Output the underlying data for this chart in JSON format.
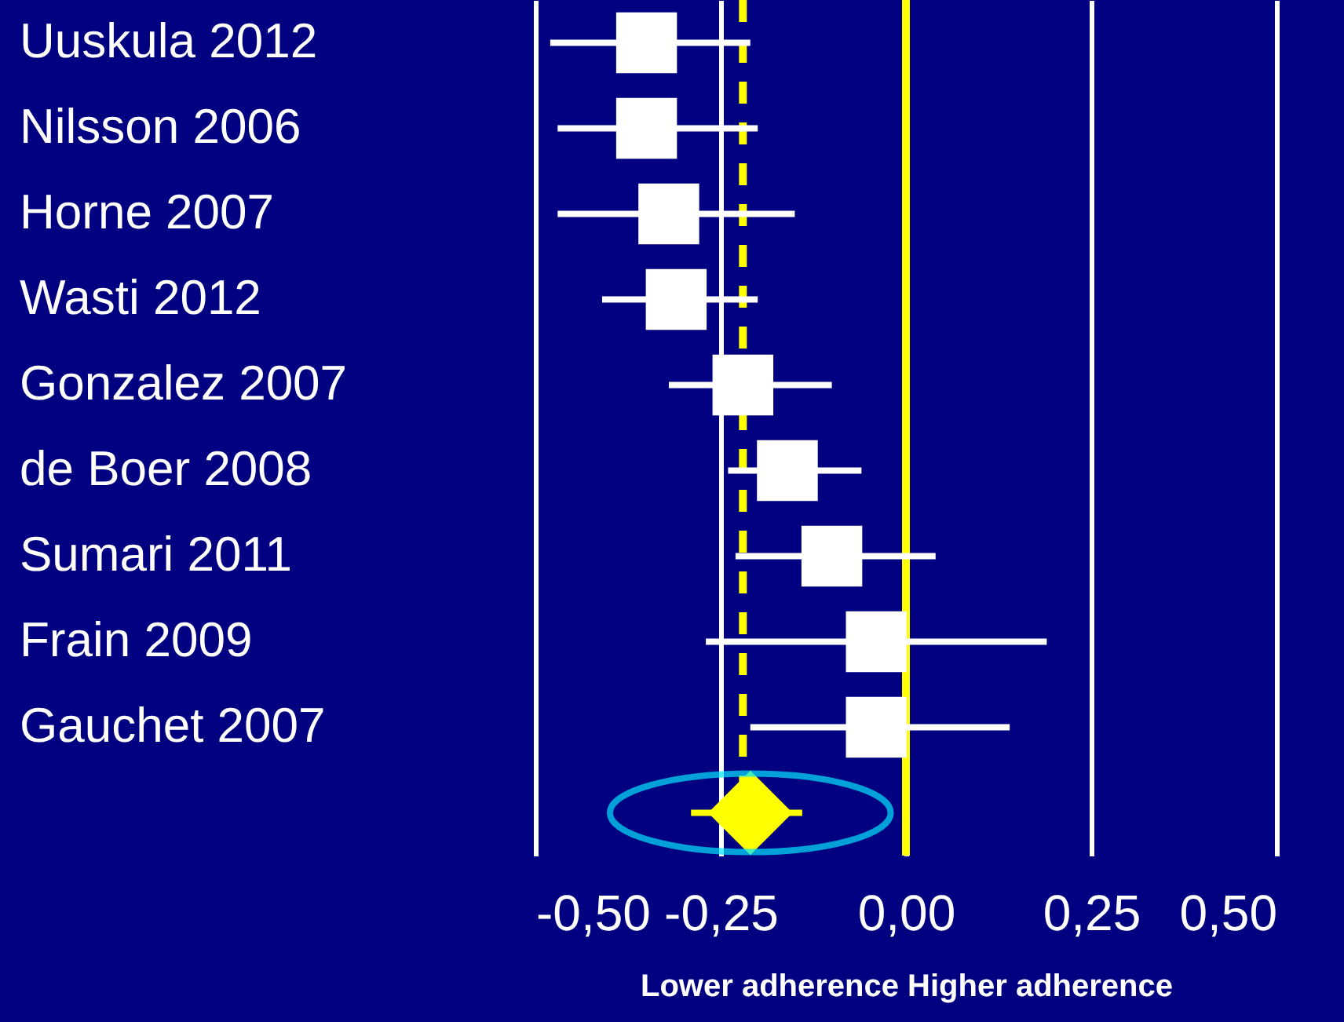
{
  "chart_data": {
    "type": "scatter",
    "orientation": "horizontal",
    "categories": [
      "Uuskula 2012",
      "Nilsson 2006",
      "Horne 2007",
      "Wasti 2012",
      "Gonzalez 2007",
      "de Boer 2008",
      "Sumari 2011",
      "Frain 2009",
      "Gauchet 2007",
      null
    ],
    "series": [
      {
        "color": "#ffffff",
        "marker": "square",
        "values": [
          -0.35,
          -0.35,
          -0.32,
          -0.31,
          -0.22,
          -0.16,
          -0.1,
          -0.04,
          -0.04,
          null
        ],
        "errors": [
          [
            -0.48,
            -0.21
          ],
          [
            -0.47,
            -0.2
          ],
          [
            -0.47,
            -0.15
          ],
          [
            -0.41,
            -0.2
          ],
          [
            -0.32,
            -0.1
          ],
          [
            -0.24,
            -0.06
          ],
          [
            -0.23,
            0.04
          ],
          [
            -0.27,
            0.19
          ],
          [
            -0.21,
            0.14
          ],
          null
        ]
      },
      {
        "color": "#ffff00",
        "marker": "diamond",
        "values": [
          null,
          null,
          null,
          null,
          null,
          null,
          null,
          null,
          null,
          -0.21
        ],
        "errors": [
          null,
          null,
          null,
          null,
          null,
          null,
          null,
          null,
          null,
          [
            -0.29,
            -0.14
          ]
        ]
      }
    ],
    "xlim": [
      -0.5,
      0.5
    ],
    "xticks": [
      {
        "value": -0.5,
        "label": "-0,50"
      },
      {
        "value": -0.25,
        "label": "-0,25"
      },
      {
        "value": 0,
        "label": "0,00"
      },
      {
        "value": 0.25,
        "label": "0,25"
      },
      {
        "value": 0.5,
        "label": "0,50"
      }
    ],
    "xlabel": "Lower adherence   Higher adherence",
    "ref_lines": [
      {
        "axis": "x",
        "value": 0,
        "color": "#ffff00",
        "line_style": "solid"
      },
      {
        "axis": "x",
        "value": -0.22,
        "color": "#ffff00",
        "line_style": "dashed"
      }
    ],
    "grid": "x"
  }
}
